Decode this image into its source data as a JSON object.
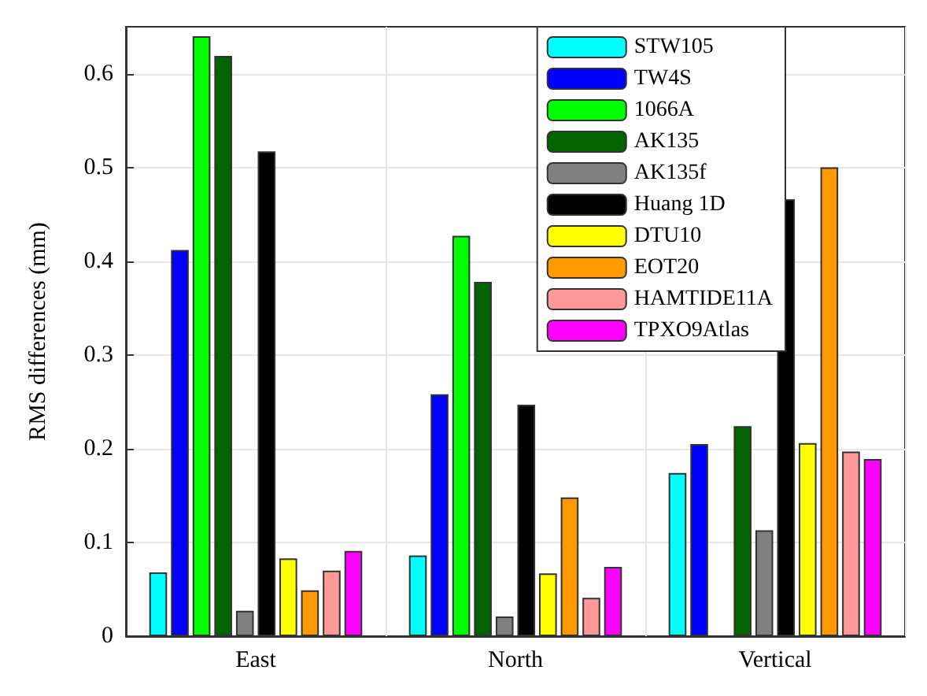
{
  "chart_data": {
    "type": "bar",
    "ylabel": "RMS differences (mm)",
    "categories": [
      "East",
      "North",
      "Vertical"
    ],
    "series": [
      {
        "name": "STW105",
        "color": "#00ffff",
        "values": [
          0.068,
          0.086,
          0.174
        ]
      },
      {
        "name": "TW4S",
        "color": "#0000ff",
        "values": [
          0.412,
          0.258,
          0.205
        ]
      },
      {
        "name": "1066A",
        "color": "#00ff00",
        "values": [
          0.64,
          0.427,
          null
        ]
      },
      {
        "name": "AK135",
        "color": "#006400",
        "values": [
          0.619,
          0.378,
          0.224
        ]
      },
      {
        "name": "AK135f",
        "color": "#808080",
        "values": [
          0.027,
          0.021,
          0.113
        ]
      },
      {
        "name": "Huang 1D",
        "color": "#000000",
        "values": [
          0.517,
          0.247,
          0.466
        ]
      },
      {
        "name": "DTU10",
        "color": "#ffff00",
        "values": [
          0.083,
          0.067,
          0.206
        ]
      },
      {
        "name": "EOT20",
        "color": "#ff9900",
        "values": [
          0.049,
          0.148,
          0.5
        ]
      },
      {
        "name": "HAMTIDE11A",
        "color": "#ff9999",
        "values": [
          0.07,
          0.041,
          0.197
        ]
      },
      {
        "name": "TPXO9Atlas",
        "color": "#ff00ff",
        "values": [
          0.091,
          0.074,
          0.189
        ]
      }
    ],
    "ylim": [
      0,
      0.65
    ],
    "yticks": [
      0,
      0.1,
      0.2,
      0.3,
      0.4,
      0.5,
      0.6
    ],
    "grid": true,
    "legend": "top right"
  }
}
